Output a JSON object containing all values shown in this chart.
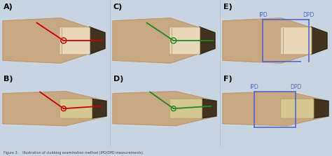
{
  "figure_width": 4.74,
  "figure_height": 2.23,
  "dpi": 100,
  "bg_color": "#c8d4e0",
  "finger_skin": "#c8a882",
  "finger_dark": "#b89070",
  "finger_tip_dark": "#302010",
  "nail_color": "#e8d8b8",
  "panel_labels": [
    "A)",
    "B)",
    "C)",
    "D)",
    "E)",
    "F)"
  ],
  "label_fontsize": 8,
  "red_color": "#cc0000",
  "green_color": "#228822",
  "blue_color": "#5566cc",
  "ipd_label": "IPD",
  "dpd_label": "DPD",
  "measure_fontsize": 5.5
}
